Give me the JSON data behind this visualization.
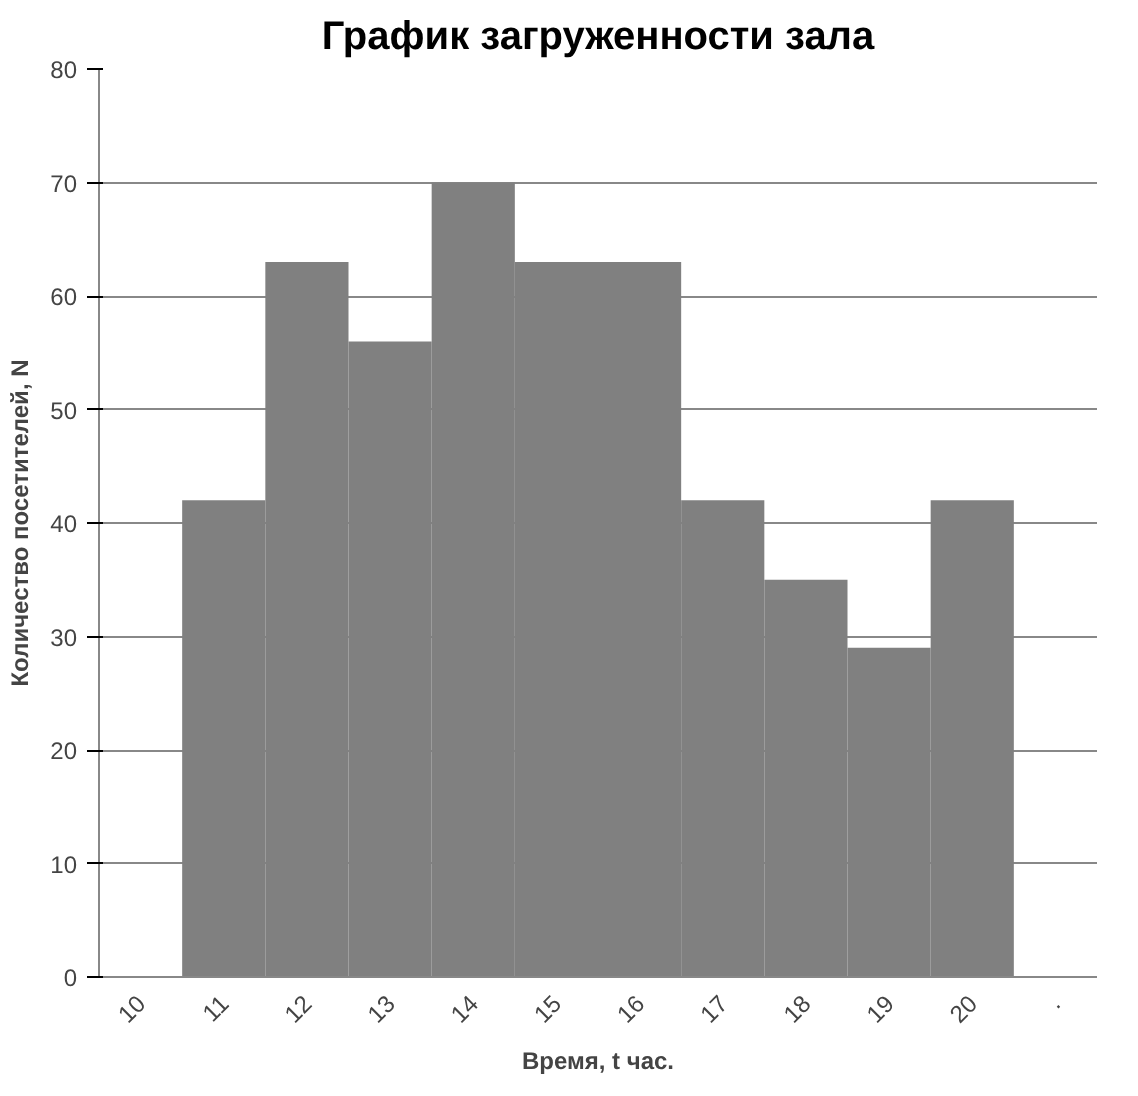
{
  "chart_data": {
    "type": "bar",
    "title": "График загруженности зала",
    "xlabel": "Время, t час.",
    "ylabel": "Количество посетителей, N",
    "categories": [
      "10",
      "11",
      "12",
      "13",
      "14",
      "15",
      "16",
      "17",
      "18",
      "19",
      "20",
      "."
    ],
    "values": [
      null,
      42,
      63,
      56,
      70,
      63,
      63,
      42,
      35,
      29,
      42,
      null
    ],
    "color": "#808080",
    "ylim": [
      0,
      80
    ],
    "yticks": [
      0,
      10,
      20,
      30,
      40,
      50,
      60,
      70,
      80
    ],
    "grid": "y"
  }
}
